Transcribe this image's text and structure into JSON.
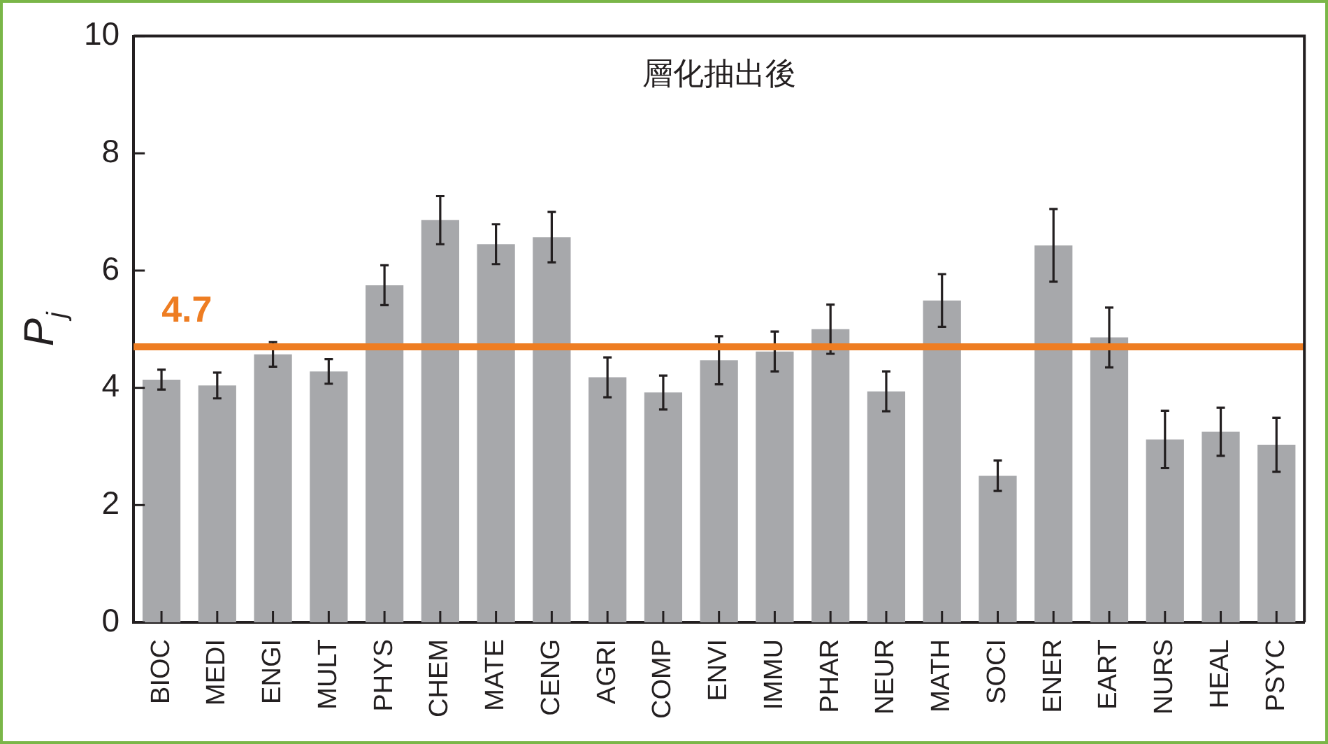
{
  "chart_data": {
    "type": "bar",
    "title": "層化抽出後",
    "ylabel": "P$_{j}$",
    "categories": [
      "BIOC",
      "MEDI",
      "ENGI",
      "MULT",
      "PHYS",
      "CHEM",
      "MATE",
      "CENG",
      "AGRI",
      "COMP",
      "ENVI",
      "IMMU",
      "PHAR",
      "NEUR",
      "MATH",
      "SOCI",
      "ENER",
      "EART",
      "NURS",
      "HEAL",
      "PSYC"
    ],
    "values": [
      4.14,
      4.04,
      4.57,
      4.28,
      5.75,
      6.86,
      6.45,
      6.57,
      4.18,
      3.92,
      4.47,
      4.62,
      5.0,
      3.94,
      5.49,
      2.5,
      6.43,
      4.86,
      3.12,
      3.25,
      3.03
    ],
    "errors": [
      0.17,
      0.22,
      0.21,
      0.21,
      0.34,
      0.41,
      0.34,
      0.43,
      0.34,
      0.29,
      0.41,
      0.34,
      0.42,
      0.34,
      0.45,
      0.26,
      0.62,
      0.51,
      0.49,
      0.41,
      0.46
    ],
    "color": "#a7a8ab",
    "ylim": [
      0,
      10
    ],
    "yticks": [
      0,
      2,
      4,
      6,
      8,
      10
    ],
    "grid": false,
    "legend": false,
    "ref_lines": [
      {
        "axis": "y",
        "value": 4.7,
        "label": "4.7",
        "color": "#ee7d22"
      }
    ]
  }
}
